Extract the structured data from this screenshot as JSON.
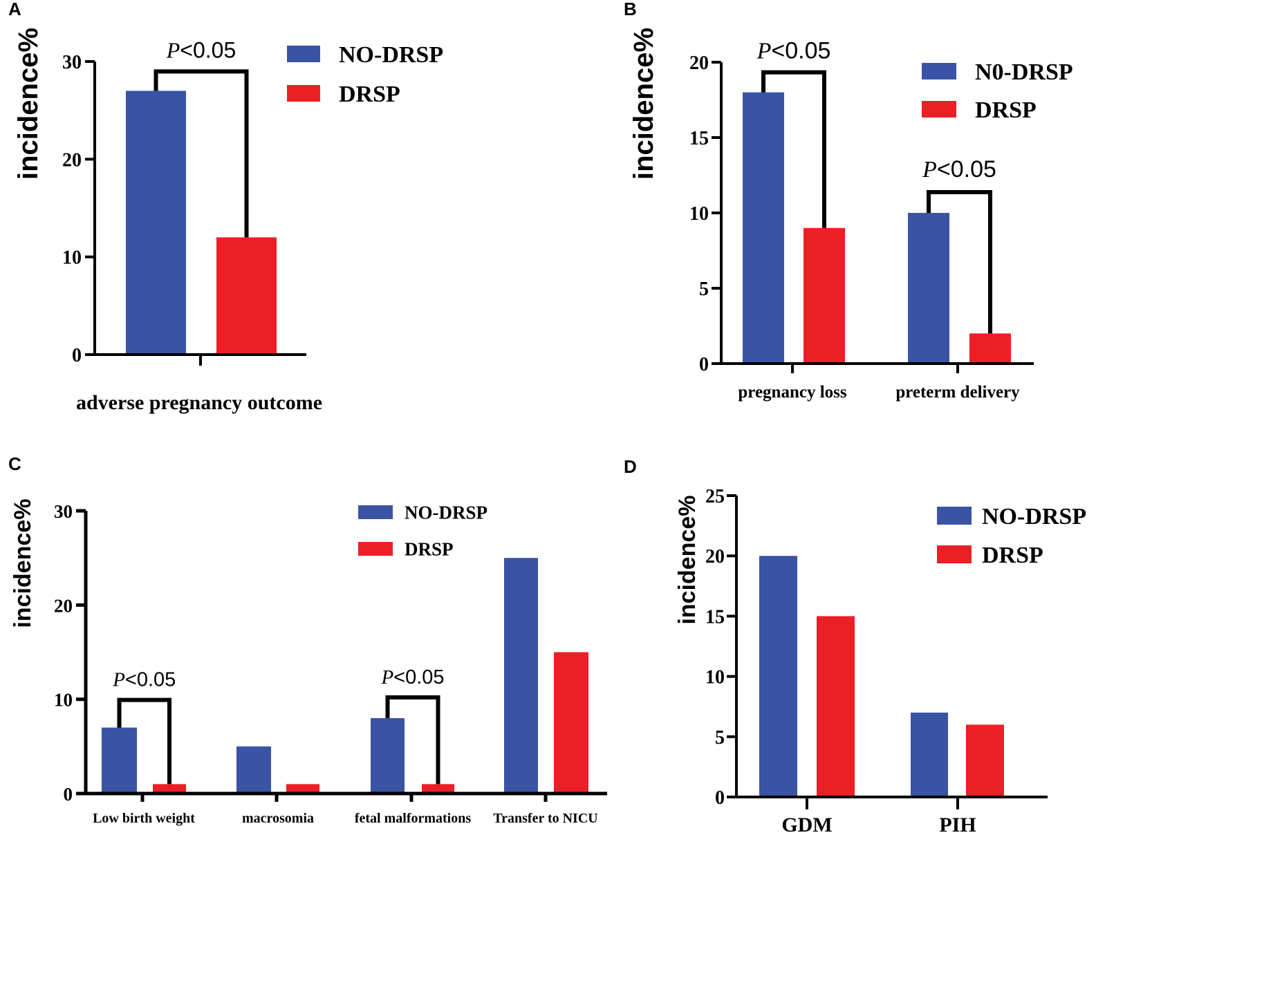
{
  "colors": {
    "no_drsp": "#3A53A4",
    "drsp": "#EC1F26",
    "axis": "#000000",
    "text": "#000000"
  },
  "chart_data": [
    {
      "panel": "A",
      "type": "bar",
      "categories": [
        "adverse pregnancy outcome"
      ],
      "series": [
        {
          "name": "NO-DRSP",
          "values": [
            27
          ]
        },
        {
          "name": "DRSP",
          "values": [
            12
          ]
        }
      ],
      "ylabel": "incidence%",
      "xlabel": "adverse pregnancy outcome",
      "yticks": [
        0,
        10,
        20,
        30
      ],
      "ylim": [
        0,
        30
      ],
      "legend": [
        "NO-DRSP",
        "DRSP"
      ],
      "legend_position": "top-right",
      "annotations": [
        {
          "category": "adverse pregnancy outcome",
          "p": "0.05"
        }
      ]
    },
    {
      "panel": "B",
      "type": "bar",
      "categories": [
        "pregnancy loss",
        "preterm delivery"
      ],
      "series": [
        {
          "name": "N0-DRSP",
          "values": [
            18,
            10
          ]
        },
        {
          "name": "DRSP",
          "values": [
            9,
            2
          ]
        }
      ],
      "ylabel": "incidence%",
      "xlabel": "",
      "yticks": [
        0,
        5,
        10,
        15,
        20
      ],
      "ylim": [
        0,
        20
      ],
      "legend": [
        "N0-DRSP",
        "DRSP"
      ],
      "legend_position": "top-right",
      "annotations": [
        {
          "category": "pregnancy loss",
          "p": "0.05"
        },
        {
          "category": "preterm delivery",
          "p": "0.05"
        }
      ]
    },
    {
      "panel": "C",
      "type": "bar",
      "categories": [
        "Low birth weight",
        "macrosomia",
        "fetal malformations",
        "Transfer to NICU"
      ],
      "series": [
        {
          "name": "NO-DRSP",
          "values": [
            7,
            5,
            8,
            25
          ]
        },
        {
          "name": "DRSP",
          "values": [
            1,
            1,
            1,
            15
          ]
        }
      ],
      "ylabel": "incidence%",
      "xlabel": "",
      "yticks": [
        0,
        10,
        20,
        30
      ],
      "ylim": [
        0,
        30
      ],
      "legend": [
        "NO-DRSP",
        "DRSP"
      ],
      "legend_position": "top-right",
      "annotations": [
        {
          "category": "Low birth weight",
          "p": "0.05"
        },
        {
          "category": "fetal malformations",
          "p": "0.05"
        }
      ]
    },
    {
      "panel": "D",
      "type": "bar",
      "categories": [
        "GDM",
        "PIH"
      ],
      "series": [
        {
          "name": "NO-DRSP",
          "values": [
            20,
            7
          ]
        },
        {
          "name": "DRSP",
          "values": [
            15,
            6
          ]
        }
      ],
      "ylabel": "incidence%",
      "xlabel": "",
      "yticks": [
        0,
        5,
        10,
        15,
        20,
        25
      ],
      "ylim": [
        0,
        25
      ],
      "legend": [
        "NO-DRSP",
        "DRSP"
      ],
      "legend_position": "top-right",
      "annotations": []
    }
  ],
  "p_prefix": "P",
  "p_symbol": "<"
}
